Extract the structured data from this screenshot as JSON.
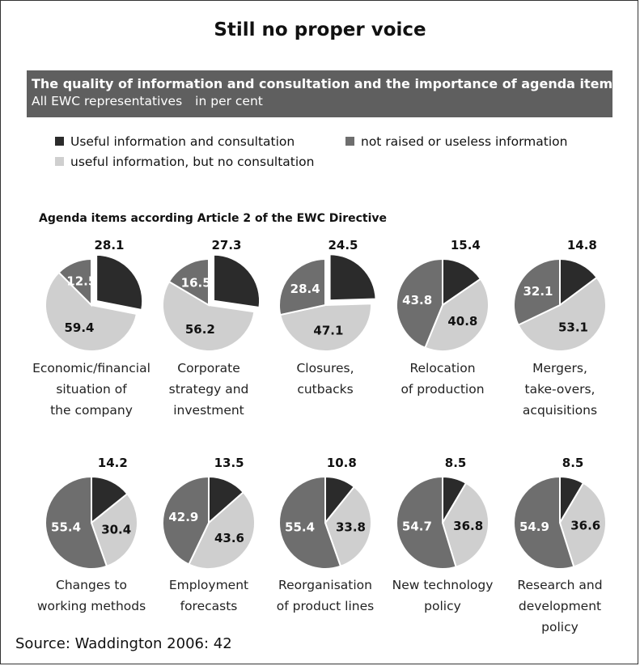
{
  "title": "Still no proper voice",
  "banner": {
    "heading": "The quality of information and consultation and the importance of agenda items",
    "subheading": "All EWC representatives",
    "unit": "in per cent"
  },
  "legend": {
    "items": [
      {
        "label": "Useful information and consultation",
        "color": "#2b2b2b"
      },
      {
        "label": "not raised or useless information",
        "color": "#6e6e6e"
      },
      {
        "label": "useful information, but no consultation",
        "color": "#cfcfcf"
      }
    ]
  },
  "section_title": "Agenda items according Article 2 of the EWC Directive",
  "chart_data": {
    "type": "pie",
    "unit": "per cent",
    "series_names": [
      "Useful information and consultation",
      "useful information, but no consultation",
      "not raised or useless information"
    ],
    "colors": [
      "#2b2b2b",
      "#cfcfcf",
      "#6e6e6e"
    ],
    "pies": [
      {
        "caption": [
          "Economic/financial",
          "situation of",
          "the company"
        ],
        "values": [
          28.1,
          59.4,
          12.5
        ],
        "labels": [
          "28.1",
          "59.4",
          "12.5"
        ],
        "exploded": true
      },
      {
        "caption": [
          "Corporate",
          "strategy and",
          "investment"
        ],
        "values": [
          27.3,
          56.2,
          16.5
        ],
        "labels": [
          "27.3",
          "56.2",
          "16.5"
        ],
        "exploded": true
      },
      {
        "caption": [
          "Closures,",
          "cutbacks"
        ],
        "values": [
          24.5,
          47.1,
          28.4
        ],
        "labels": [
          "24.5",
          "47.1",
          "28.4"
        ],
        "exploded": true
      },
      {
        "caption": [
          "Relocation",
          "of production"
        ],
        "values": [
          15.4,
          40.8,
          43.8
        ],
        "labels": [
          "15.4",
          "40.8",
          "43.8"
        ],
        "exploded": false
      },
      {
        "caption": [
          "Mergers,",
          "take-overs,",
          "acquisitions"
        ],
        "values": [
          14.8,
          53.1,
          32.1
        ],
        "labels": [
          "14.8",
          "53.1",
          "32.1"
        ],
        "exploded": false
      },
      {
        "caption": [
          "Changes to",
          "working methods"
        ],
        "values": [
          14.2,
          30.4,
          55.4
        ],
        "labels": [
          "14.2",
          "30.4",
          "55.4"
        ],
        "exploded": false
      },
      {
        "caption": [
          "Employment",
          "forecasts"
        ],
        "values": [
          13.5,
          43.6,
          42.9
        ],
        "labels": [
          "13.5",
          "43.6",
          "42.9"
        ],
        "exploded": false
      },
      {
        "caption": [
          "Reorganisation",
          "of product lines"
        ],
        "values": [
          10.8,
          33.8,
          55.4
        ],
        "labels": [
          "10.8",
          "33.8",
          "55.4"
        ],
        "exploded": false
      },
      {
        "caption": [
          "New technology",
          "policy"
        ],
        "values": [
          8.5,
          36.8,
          54.7
        ],
        "labels": [
          "8.5",
          "36.8",
          "54.7"
        ],
        "exploded": false
      },
      {
        "caption": [
          "Research and",
          "development",
          "policy"
        ],
        "values": [
          8.5,
          36.6,
          54.9
        ],
        "labels": [
          "8.5",
          "36.6",
          "54.9"
        ],
        "exploded": false
      }
    ]
  },
  "source": "Source: Waddington 2006: 42"
}
